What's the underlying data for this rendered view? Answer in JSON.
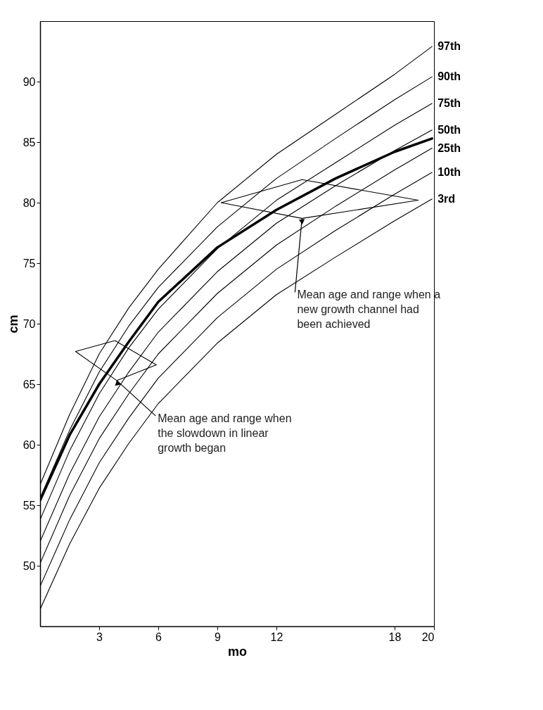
{
  "chart_data": {
    "type": "line",
    "xlabel": "mo",
    "ylabel": "cm",
    "xlim": [
      0,
      20
    ],
    "xticks": [
      3,
      6,
      9,
      12,
      18,
      20
    ],
    "ylim": [
      45,
      95
    ],
    "yticks": [
      50,
      55,
      60,
      65,
      70,
      75,
      80,
      85,
      90
    ],
    "x": [
      0,
      1.5,
      3,
      4.5,
      6,
      9,
      12,
      15,
      18,
      19.9
    ],
    "grid": false,
    "marker": "none",
    "line_style": "solid",
    "series": [
      {
        "name": "97th",
        "color": "#000000",
        "values": [
          56.7,
          62.5,
          67.5,
          71.3,
          74.5,
          80.0,
          84.0,
          87.3,
          90.6,
          92.9
        ]
      },
      {
        "name": "90th",
        "color": "#000000",
        "values": [
          55.6,
          61.2,
          66.0,
          69.8,
          73.0,
          78.0,
          82.0,
          85.3,
          88.5,
          90.4
        ]
      },
      {
        "name": "75th",
        "color": "#000000",
        "values": [
          53.8,
          59.5,
          64.2,
          68.0,
          71.2,
          76.2,
          80.2,
          83.3,
          86.4,
          88.2
        ]
      },
      {
        "name": "50th",
        "color": "#000000",
        "values": [
          52.0,
          57.6,
          62.3,
          66.0,
          69.3,
          74.3,
          78.3,
          81.4,
          84.3,
          86.0
        ]
      },
      {
        "name": "25th",
        "color": "#000000",
        "values": [
          50.2,
          55.8,
          60.5,
          64.2,
          67.5,
          72.5,
          76.5,
          79.7,
          82.7,
          84.5
        ]
      },
      {
        "name": "10th",
        "color": "#000000",
        "values": [
          48.3,
          53.8,
          58.5,
          62.2,
          65.5,
          70.5,
          74.5,
          77.7,
          80.7,
          82.5
        ]
      },
      {
        "name": "3rd",
        "color": "#000000",
        "values": [
          46.4,
          51.8,
          56.4,
          60.1,
          63.4,
          68.4,
          72.4,
          75.5,
          78.5,
          80.3
        ]
      },
      {
        "color": "#000000",
        "values": [
          55.4,
          60.8,
          65.0,
          68.5,
          71.8,
          76.3,
          79.4,
          82.0,
          84.2,
          85.3
        ]
      },
      {
        "color": "#000000",
        "x": [
          1.8,
          3.8,
          5.9
        ],
        "values": [
          67.7,
          68.6,
          66.6
        ]
      },
      {
        "color": "#000000",
        "x": [
          1.8,
          3.9,
          5.9
        ],
        "values": [
          67.7,
          65.3,
          66.6
        ]
      },
      {
        "color": "#000000",
        "x": [
          9.2,
          13.3,
          19.2
        ],
        "values": [
          80.0,
          81.9,
          80.2
        ]
      },
      {
        "color": "#000000",
        "x": [
          9.2,
          13.3,
          19.2
        ],
        "values": [
          80.0,
          78.7,
          80.2
        ]
      }
    ],
    "annotations": [
      {
        "text": "Mean age and range when the slowdown in linear growth began",
        "x": 3.9,
        "y": 65.3
      },
      {
        "text": "Mean age and range when a new growth channel had been achieved",
        "x": 13.3,
        "y": 78.7
      }
    ]
  }
}
